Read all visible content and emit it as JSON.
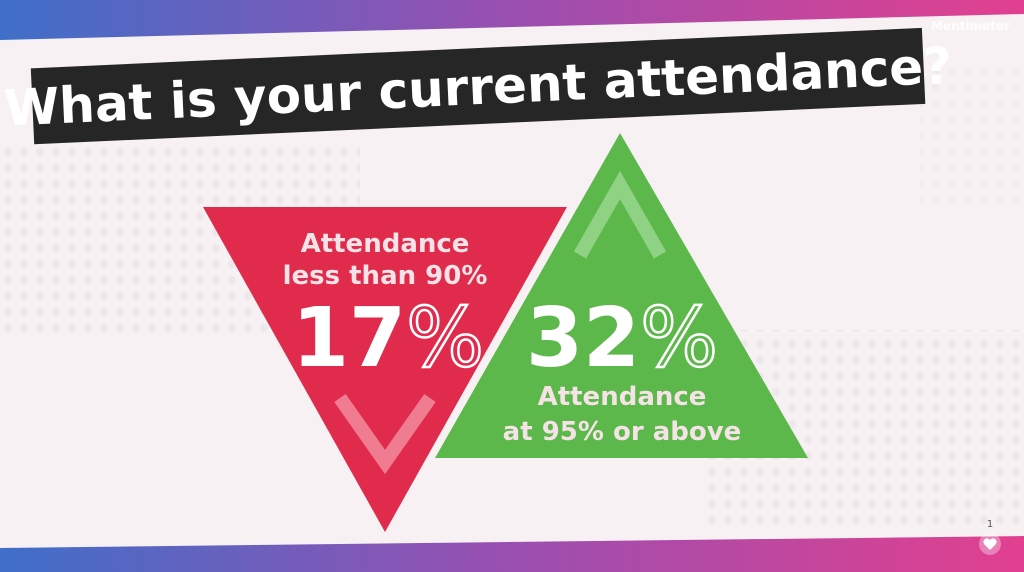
{
  "header": {
    "title": "What is your current attendance?",
    "brand": "Mentimeter"
  },
  "stats": [
    {
      "lines": [
        "Attendance",
        "less than 90%"
      ],
      "value": "17",
      "symbol": "%"
    },
    {
      "lines": [
        "Attendance",
        "at 95% or above"
      ],
      "value": "32",
      "symbol": "%"
    }
  ],
  "reactions": {
    "count": "1"
  }
}
